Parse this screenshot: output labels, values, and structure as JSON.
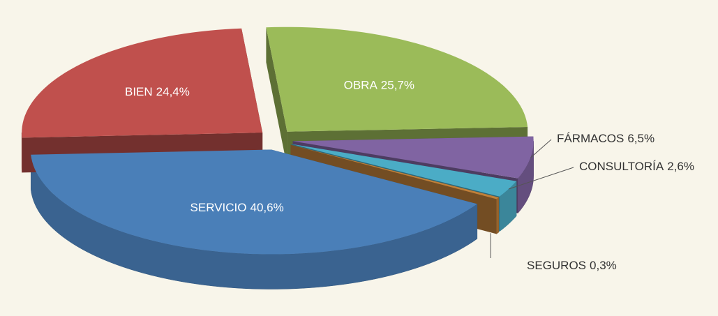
{
  "chart_data": {
    "type": "pie",
    "categories": [
      "OBRA",
      "FÁRMACOS",
      "CONSULTORÍA",
      "SEGUROS",
      "SERVICIO",
      "BIEN"
    ],
    "values": [
      25.7,
      6.5,
      2.6,
      0.3,
      40.6,
      24.4
    ],
    "value_labels": [
      "25,7%",
      "6,5%",
      "2,6%",
      "0,3%",
      "40,6%",
      "24,4%"
    ],
    "colors": [
      "#9bbb59",
      "#8064a2",
      "#4bacc6",
      "#c0803a",
      "#4a7fb8",
      "#c0504d"
    ]
  }
}
